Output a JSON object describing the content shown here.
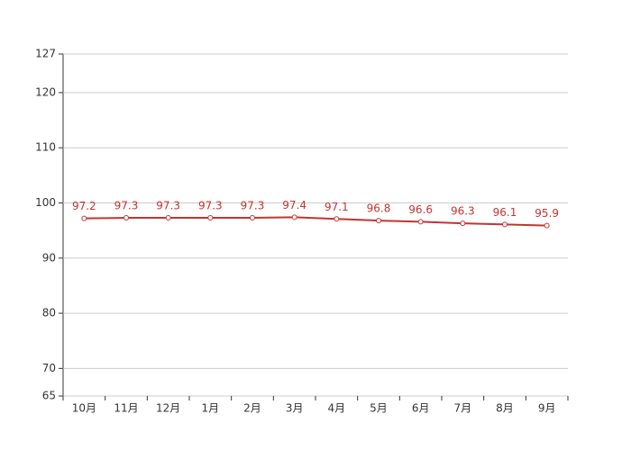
{
  "chart_data": {
    "type": "line",
    "categories": [
      "10月",
      "11月",
      "12月",
      "1月",
      "2月",
      "3月",
      "4月",
      "5月",
      "6月",
      "7月",
      "8月",
      "9月"
    ],
    "values": [
      97.2,
      97.3,
      97.3,
      97.3,
      97.3,
      97.4,
      97.1,
      96.8,
      96.6,
      96.3,
      96.1,
      95.9
    ],
    "color": "#c23531",
    "ylim": [
      65,
      127
    ],
    "yticks": [
      65,
      70,
      80,
      90,
      100,
      110,
      120,
      127
    ],
    "grid": true
  }
}
